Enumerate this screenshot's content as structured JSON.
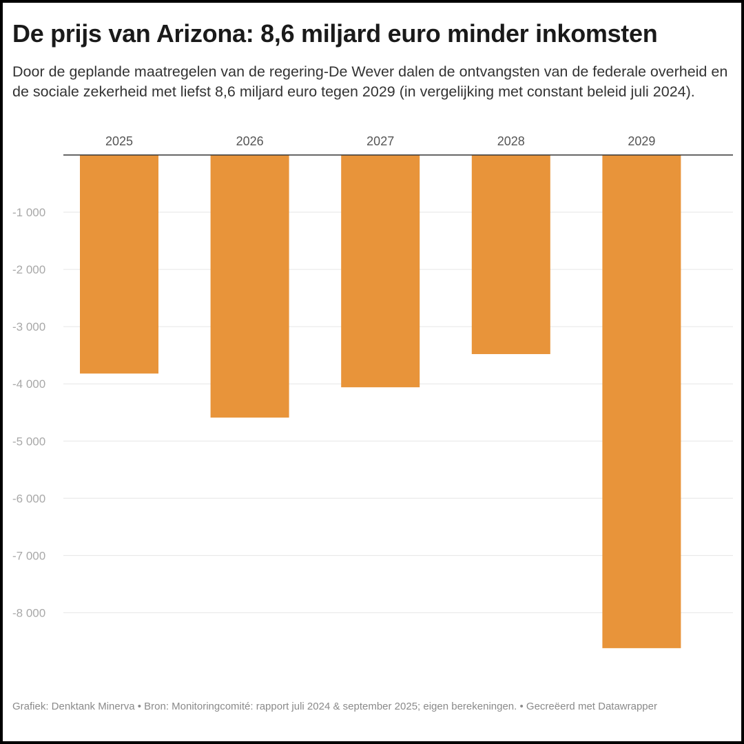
{
  "title": "De prijs van Arizona: 8,6 miljard euro minder inkomsten",
  "subtitle": "Door de geplande maatregelen van de regering-De Wever dalen de ontvangsten van de federale overheid en de sociale zekerheid met liefst 8,6 miljard euro tegen 2029 (in vergelijking met constant beleid juli 2024).",
  "footer": "Grafiek: Denktank Minerva • Bron: Monitoringcomité: rapport juli 2024 & september 2025; eigen berekeningen. • Gecreëerd met Datawrapper",
  "colors": {
    "bar": "#E8943A",
    "gridline": "#e6e6e6",
    "baseline": "#333333",
    "tick_label": "#a8a8a8",
    "category_label": "#555555"
  },
  "chart_data": {
    "type": "bar",
    "categories": [
      "2025",
      "2026",
      "2027",
      "2028",
      "2029"
    ],
    "values": [
      -3820,
      -4590,
      -4060,
      -3480,
      -8620
    ],
    "ylim": [
      -8700,
      0
    ],
    "yticks": [
      -1000,
      -2000,
      -3000,
      -4000,
      -5000,
      -6000,
      -7000,
      -8000
    ],
    "ytick_labels": [
      "-1 000",
      "-2 000",
      "-3 000",
      "-4 000",
      "-5 000",
      "-6 000",
      "-7 000",
      "-8 000"
    ],
    "grid": true,
    "category_axis_position": "top"
  }
}
